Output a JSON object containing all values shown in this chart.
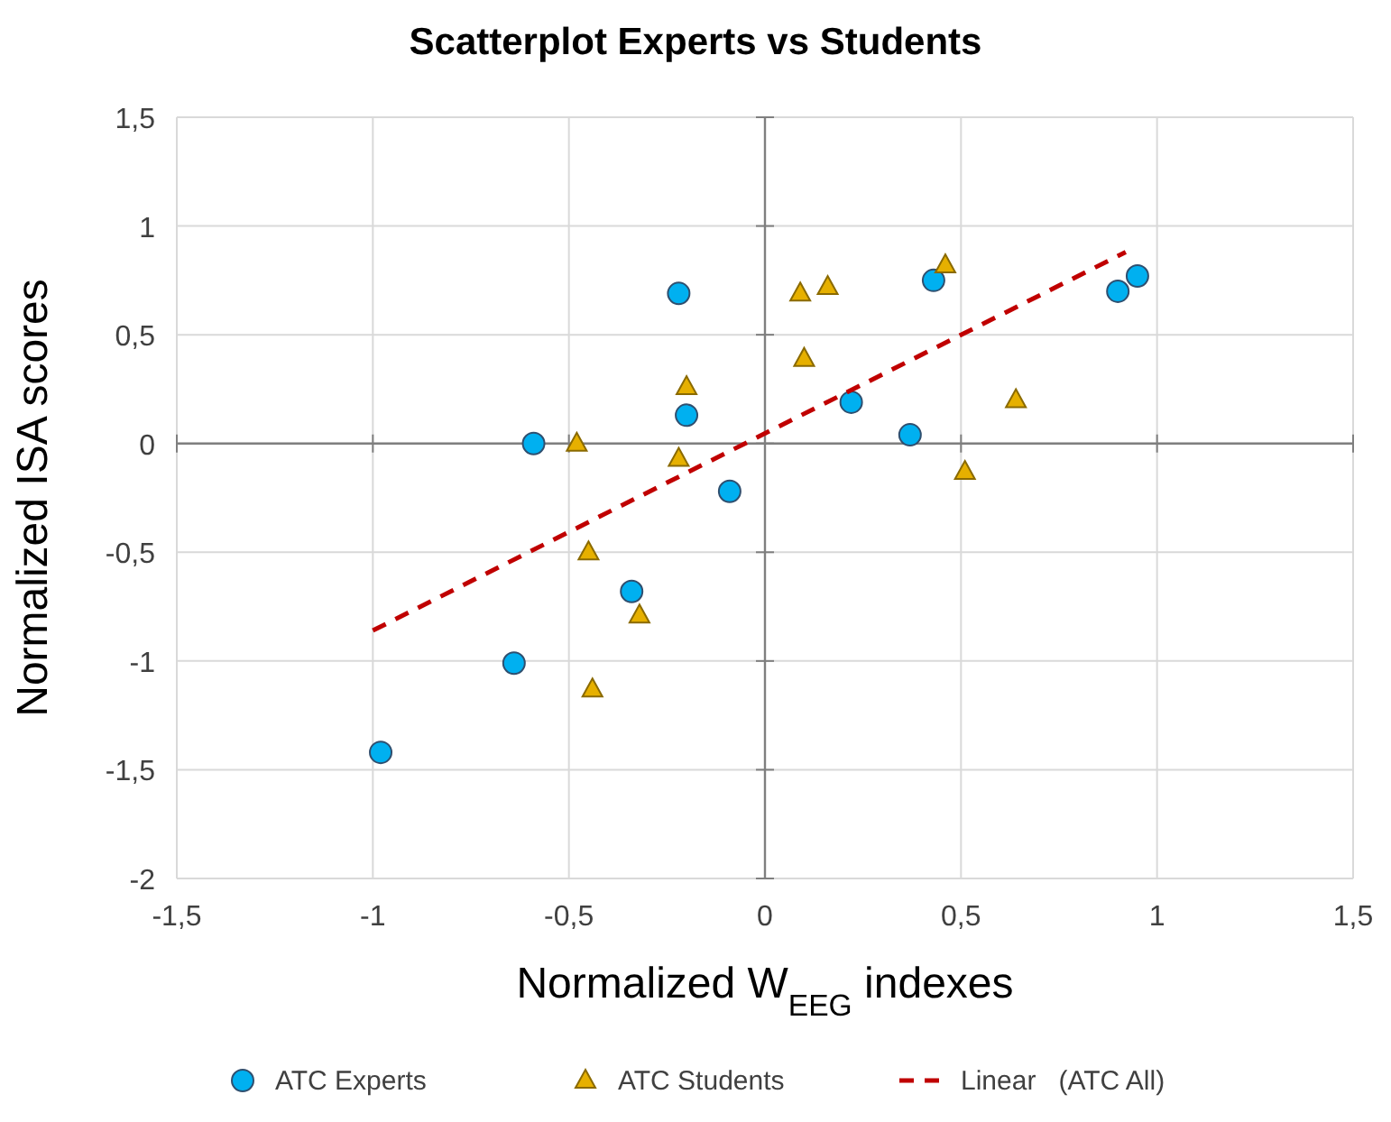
{
  "chart_data": {
    "type": "scatter",
    "title": "Scatterplot Experts vs Students",
    "xlabel": "Normalized W$_{EEG}$ indexes",
    "ylabel": "Normalized ISA scores",
    "xlim": [
      -1.5,
      1.5
    ],
    "ylim": [
      -2,
      1.5
    ],
    "xticks": [
      {
        "value": -1.5,
        "label": "-1,5"
      },
      {
        "value": -1,
        "label": "-1"
      },
      {
        "value": -0.5,
        "label": "-0,5"
      },
      {
        "value": 0,
        "label": "0"
      },
      {
        "value": 0.5,
        "label": "0,5"
      },
      {
        "value": 1,
        "label": "1"
      },
      {
        "value": 1.5,
        "label": "1,5"
      }
    ],
    "yticks": [
      {
        "value": -2,
        "label": "-2"
      },
      {
        "value": -1.5,
        "label": "-1,5"
      },
      {
        "value": -1,
        "label": "-1"
      },
      {
        "value": -0.5,
        "label": "-0,5"
      },
      {
        "value": 0,
        "label": "0"
      },
      {
        "value": 0.5,
        "label": "0,5"
      },
      {
        "value": 1,
        "label": "1"
      },
      {
        "value": 1.5,
        "label": "1,5"
      }
    ],
    "grid": true,
    "legend": "bottom",
    "series": [
      {
        "name": "ATC Experts",
        "marker": "circle",
        "color": "#00b0f0",
        "x": [
          -0.98,
          -0.64,
          -0.59,
          -0.34,
          -0.09,
          -0.2,
          -0.22,
          0.22,
          0.37,
          0.43,
          0.9,
          0.95
        ],
        "values": [
          -1.42,
          -1.01,
          0,
          -0.68,
          -0.22,
          0.13,
          0.69,
          0.19,
          0.04,
          0.75,
          0.7,
          0.77
        ]
      },
      {
        "name": "ATC Students",
        "marker": "triangle",
        "color": "#e6b000",
        "x": [
          -0.48,
          -0.45,
          -0.32,
          -0.44,
          -0.22,
          -0.2,
          0.09,
          0.16,
          0.1,
          0.46,
          0.64,
          0.51
        ],
        "values": [
          0,
          -0.5,
          -0.79,
          -1.13,
          -0.07,
          0.26,
          0.69,
          0.72,
          0.39,
          0.82,
          0.2,
          -0.13
        ]
      },
      {
        "name": "Linear   (ATC All)",
        "type": "line",
        "line_style": "dashed",
        "color": "#c00000",
        "x": [
          -1,
          0.92
        ],
        "values": [
          -0.86,
          0.88
        ]
      }
    ]
  }
}
